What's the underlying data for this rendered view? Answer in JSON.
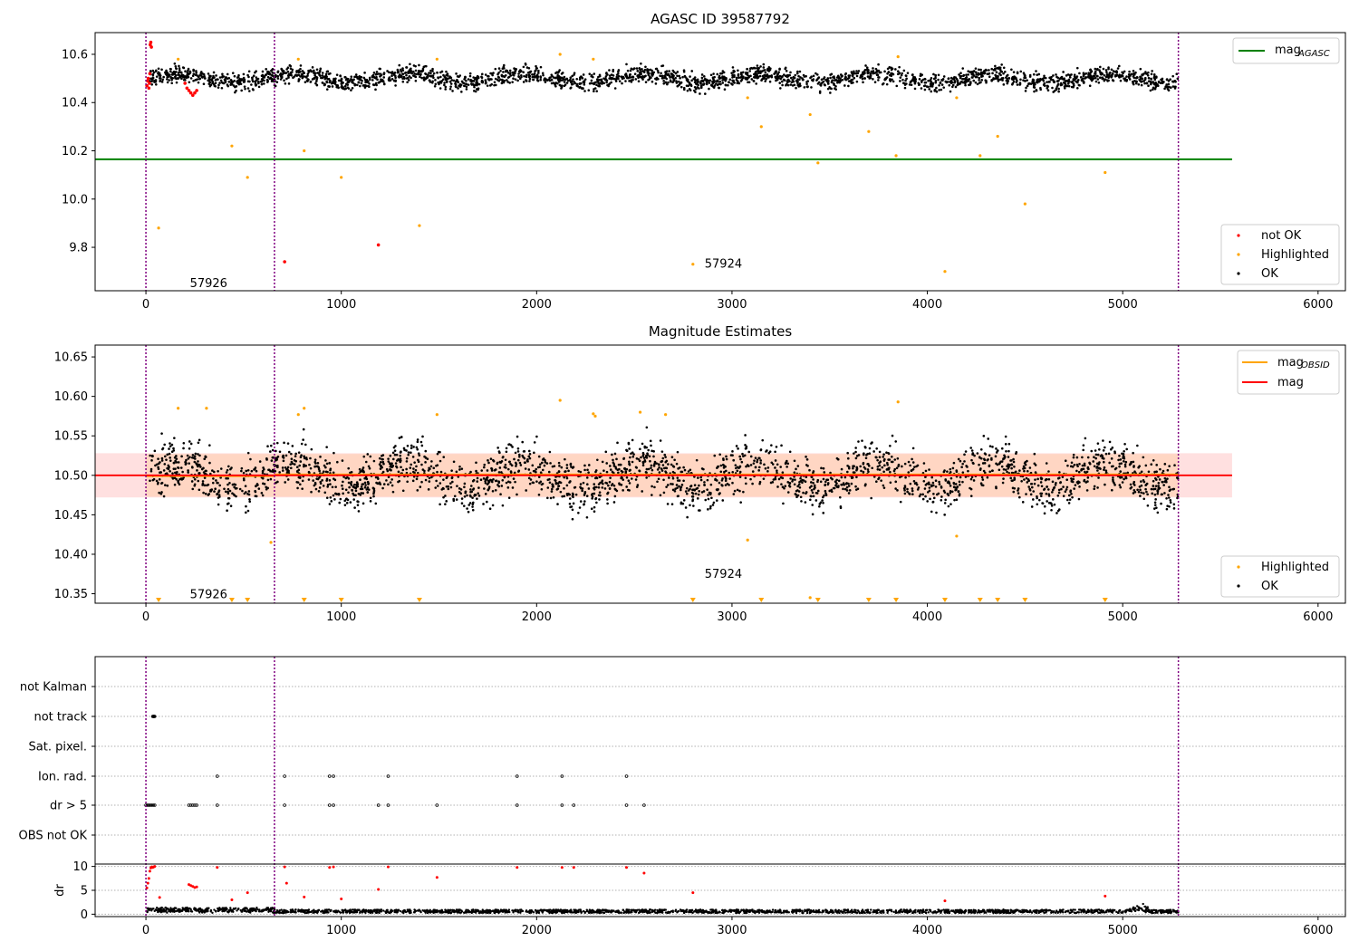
{
  "chart_data": [
    {
      "type": "scatter",
      "title": "AGASC ID 39587792",
      "xlabel": "",
      "ylabel": "",
      "xlim": [
        -260,
        6140
      ],
      "ylim": [
        9.62,
        10.69
      ],
      "xticks": [
        0,
        1000,
        2000,
        3000,
        4000,
        5000,
        6000
      ],
      "yticks": [
        9.8,
        10.0,
        10.2,
        10.4,
        10.6
      ],
      "ytick_labels": [
        "9.8",
        "10.0",
        "10.2",
        "10.4",
        "10.6"
      ],
      "vlines": [
        0,
        658,
        5285
      ],
      "hline": {
        "name_main": "mag",
        "name_sub": "AGASC",
        "value": 10.165,
        "x_range": [
          -260,
          5560
        ],
        "color": "#008000"
      },
      "series": [
        {
          "name": "not OK",
          "color": "#ff0000"
        },
        {
          "name": "Highlighted",
          "color": "#ffa500"
        },
        {
          "name": "OK",
          "color": "#000000"
        }
      ],
      "ok_band": {
        "x_range": [
          20,
          5285
        ],
        "center": 10.5,
        "amplitude": 0.04
      },
      "not_ok_points": [
        [
          5,
          10.47
        ],
        [
          8,
          10.49
        ],
        [
          12,
          10.5
        ],
        [
          15,
          10.46
        ],
        [
          18,
          10.48
        ],
        [
          20,
          10.52
        ],
        [
          22,
          10.64
        ],
        [
          25,
          10.65
        ],
        [
          28,
          10.63
        ],
        [
          200,
          10.48
        ],
        [
          210,
          10.46
        ],
        [
          220,
          10.45
        ],
        [
          230,
          10.44
        ],
        [
          240,
          10.43
        ],
        [
          250,
          10.44
        ],
        [
          260,
          10.45
        ],
        [
          710,
          9.74
        ],
        [
          1190,
          9.81
        ]
      ],
      "highlighted_points": [
        [
          65,
          9.88
        ],
        [
          165,
          10.58
        ],
        [
          440,
          10.22
        ],
        [
          520,
          10.09
        ],
        [
          780,
          10.58
        ],
        [
          810,
          10.2
        ],
        [
          1000,
          10.09
        ],
        [
          1400,
          9.89
        ],
        [
          1490,
          10.58
        ],
        [
          2120,
          10.6
        ],
        [
          2290,
          10.58
        ],
        [
          2800,
          9.73
        ],
        [
          3080,
          10.42
        ],
        [
          3150,
          10.3
        ],
        [
          3400,
          10.35
        ],
        [
          3440,
          10.15
        ],
        [
          3700,
          10.28
        ],
        [
          3840,
          10.18
        ],
        [
          3850,
          10.59
        ],
        [
          4090,
          9.7
        ],
        [
          4150,
          10.42
        ],
        [
          4270,
          10.18
        ],
        [
          4360,
          10.26
        ],
        [
          4500,
          9.98
        ],
        [
          4910,
          10.11
        ]
      ],
      "annotations": [
        {
          "text": "57926",
          "x": 225,
          "y": 9.65
        },
        {
          "text": "57924",
          "x": 2860,
          "y": 9.73
        }
      ],
      "legend_upper": "upper right",
      "legend_lower": "lower right"
    },
    {
      "type": "scatter",
      "title": "Magnitude Estimates",
      "xlabel": "",
      "ylabel": "",
      "xlim": [
        -260,
        6140
      ],
      "ylim": [
        10.338,
        10.665
      ],
      "xticks": [
        0,
        1000,
        2000,
        3000,
        4000,
        5000,
        6000
      ],
      "yticks": [
        10.35,
        10.4,
        10.45,
        10.5,
        10.55,
        10.6,
        10.65
      ],
      "ytick_labels": [
        "10.35",
        "10.40",
        "10.45",
        "10.50",
        "10.55",
        "10.60",
        "10.65"
      ],
      "vlines": [
        0,
        658,
        5285
      ],
      "mag_line": {
        "name": "mag",
        "value": 10.5,
        "x_range": [
          -260,
          5560
        ],
        "color": "#ff0000"
      },
      "mag_band": {
        "range": [
          10.472,
          10.528
        ],
        "color": "#ff9999"
      },
      "mag_obsid_segments": {
        "name_main": "mag",
        "name_sub": "OBSID",
        "color": "#ffa500",
        "segments": [
          [
            0,
            658,
            10.499
          ],
          [
            658,
            5285,
            10.501
          ]
        ]
      },
      "obsid_band": {
        "range": [
          10.473,
          10.527
        ],
        "x_range": [
          0,
          5285
        ],
        "color": "#ffc9a0"
      },
      "series": [
        {
          "name": "Highlighted",
          "color": "#ffa500"
        },
        {
          "name": "OK",
          "color": "#000000"
        }
      ],
      "ok_band": {
        "x_range": [
          20,
          5285
        ],
        "center": 10.5,
        "amplitude": 0.035
      },
      "highlighted_points": [
        [
          165,
          10.585
        ],
        [
          310,
          10.585
        ],
        [
          640,
          10.415
        ],
        [
          780,
          10.577
        ],
        [
          810,
          10.585
        ],
        [
          1490,
          10.577
        ],
        [
          2120,
          10.595
        ],
        [
          2290,
          10.578
        ],
        [
          2300,
          10.575
        ],
        [
          2530,
          10.58
        ],
        [
          2660,
          10.577
        ],
        [
          3080,
          10.418
        ],
        [
          3850,
          10.593
        ],
        [
          4150,
          10.423
        ]
      ],
      "lower_markers_x": [
        65,
        440,
        520,
        810,
        1000,
        1400,
        2800,
        3150,
        3440,
        3700,
        3840,
        4090,
        4270,
        4360,
        4500,
        4910
      ],
      "lower_dots": [
        [
          3400,
          10.345
        ]
      ],
      "annotations": [
        {
          "text": "57926",
          "x": 225,
          "y": 10.349
        },
        {
          "text": "57924",
          "x": 2860,
          "y": 10.375
        }
      ],
      "legend_upper": "upper right",
      "legend_lower": "lower right"
    },
    {
      "type": "scatter",
      "title": "",
      "xlim": [
        -260,
        6140
      ],
      "xticks": [
        0,
        1000,
        2000,
        3000,
        4000,
        5000,
        6000
      ],
      "vlines": [
        0,
        658,
        5285
      ],
      "flag_rows": [
        "not Kalman",
        "not track",
        "Sat. pixel.",
        "Ion. rad.",
        "dr > 5",
        "OBS not OK"
      ],
      "flag_points": {
        "not track": [
          35,
          38,
          40,
          42,
          45
        ],
        "Ion. rad.": [
          365,
          710,
          940,
          960,
          1240,
          1900,
          2130,
          2460
        ],
        "dr > 5": [
          0,
          8,
          15,
          22,
          30,
          38,
          45,
          220,
          230,
          240,
          250,
          260,
          365,
          710,
          940,
          960,
          1190,
          1240,
          1490,
          1900,
          2130,
          2190,
          2460,
          2550
        ]
      },
      "dr_panel": {
        "ylabel": "dr",
        "ylim": [
          -0.5,
          10.5
        ],
        "yticks": [
          0,
          5,
          10
        ],
        "ytick_labels": [
          "0",
          "5",
          "10"
        ],
        "red_points": [
          [
            5,
            5.5
          ],
          [
            10,
            6.5
          ],
          [
            15,
            7.5
          ],
          [
            20,
            9.0
          ],
          [
            25,
            9.7
          ],
          [
            30,
            9.9
          ],
          [
            35,
            9.8
          ],
          [
            40,
            9.9
          ],
          [
            45,
            10.0
          ],
          [
            220,
            6.2
          ],
          [
            230,
            6.0
          ],
          [
            240,
            5.8
          ],
          [
            250,
            5.6
          ],
          [
            260,
            5.7
          ],
          [
            70,
            3.5
          ],
          [
            365,
            9.8
          ],
          [
            440,
            3.0
          ],
          [
            520,
            4.5
          ],
          [
            710,
            9.9
          ],
          [
            720,
            6.5
          ],
          [
            810,
            3.6
          ],
          [
            940,
            9.8
          ],
          [
            960,
            9.9
          ],
          [
            1000,
            3.2
          ],
          [
            1190,
            5.2
          ],
          [
            1240,
            9.9
          ],
          [
            1490,
            7.7
          ],
          [
            1900,
            9.8
          ],
          [
            2130,
            9.8
          ],
          [
            2190,
            9.8
          ],
          [
            2460,
            9.8
          ],
          [
            2550,
            8.6
          ],
          [
            2800,
            4.5
          ],
          [
            4090,
            2.8
          ],
          [
            4910,
            3.8
          ]
        ],
        "ok_band": {
          "x_range": [
            0,
            5285
          ],
          "center": 0.6,
          "amplitude": 0.35
        }
      }
    }
  ]
}
